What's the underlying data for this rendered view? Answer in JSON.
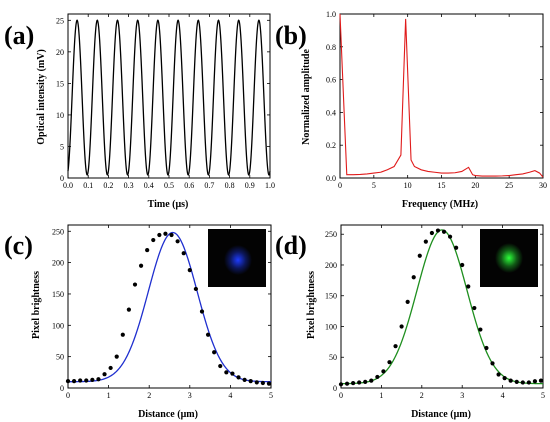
{
  "colors": {
    "panel_a_line": "#000000",
    "panel_b_line": "#e01b1b",
    "panel_c_fit": "#1f2fcf",
    "panel_d_fit": "#1f8f1f",
    "points": "#000000",
    "inset_background": "#030303",
    "inset_c_spot": "#1e3cff",
    "inset_d_spot": "#2cff3a"
  },
  "chart_data": [
    {
      "panel": "(a)",
      "type": "line",
      "xlabel": "Time (μs)",
      "ylabel": "Optical intensity (mV)",
      "xlim": [
        0.0,
        1.0
      ],
      "ylim": [
        0,
        26
      ],
      "xticks": [
        0.0,
        0.1,
        0.2,
        0.3,
        0.4,
        0.5,
        0.6,
        0.7,
        0.8,
        0.9,
        1.0
      ],
      "xtick_labels": [
        "0.0",
        "0.1",
        "0.2",
        "0.3",
        "0.4",
        "0.5",
        "0.6",
        "0.7",
        "0.8",
        "0.9",
        "1.0"
      ],
      "yticks": [
        0,
        5,
        10,
        15,
        20,
        25
      ],
      "ytick_labels": [
        "0",
        "5",
        "10",
        "15",
        "20",
        "25"
      ],
      "series": [
        {
          "function": "sinusoid",
          "frequency_mhz": 10,
          "min": 0.5,
          "max": 25.0,
          "phase_peak_at_us": 0.045
        }
      ]
    },
    {
      "panel": "(b)",
      "type": "line",
      "xlabel": "Frequency (MHz)",
      "ylabel": "Normalized amplitude",
      "xlim": [
        0,
        30
      ],
      "ylim": [
        0.0,
        1.0
      ],
      "xticks": [
        0,
        5,
        10,
        15,
        20,
        25,
        30
      ],
      "xtick_labels": [
        "0",
        "5",
        "10",
        "15",
        "20",
        "25",
        "30"
      ],
      "yticks": [
        0.0,
        0.2,
        0.4,
        0.6,
        0.8,
        1.0
      ],
      "ytick_labels": [
        "0.0",
        "0.2",
        "0.4",
        "0.6",
        "0.8",
        "1.0"
      ],
      "series": [
        {
          "x": [
            0,
            1,
            2,
            3,
            4,
            5,
            6,
            7,
            8,
            9,
            9.7,
            10.5,
            11,
            12,
            13,
            14,
            15,
            16,
            17,
            18,
            19,
            19.6,
            20,
            21,
            22,
            23,
            24,
            25,
            26,
            27,
            28,
            28.8,
            29.5,
            30
          ],
          "y": [
            1.0,
            0.02,
            0.02,
            0.022,
            0.025,
            0.03,
            0.035,
            0.05,
            0.07,
            0.14,
            0.97,
            0.11,
            0.07,
            0.05,
            0.04,
            0.035,
            0.03,
            0.03,
            0.032,
            0.04,
            0.065,
            0.02,
            0.015,
            0.012,
            0.012,
            0.012,
            0.013,
            0.015,
            0.02,
            0.025,
            0.035,
            0.045,
            0.03,
            0.005
          ]
        }
      ]
    },
    {
      "panel": "(c)",
      "type": "scatter",
      "xlabel": "Distance (μm)",
      "ylabel": "Pixel brightness",
      "xlim": [
        0,
        5
      ],
      "ylim": [
        0,
        260
      ],
      "xticks": [
        0,
        1,
        2,
        3,
        4,
        5
      ],
      "xtick_labels": [
        "0",
        "1",
        "2",
        "3",
        "4",
        "5"
      ],
      "yticks": [
        0,
        50,
        100,
        150,
        200,
        250
      ],
      "ytick_labels": [
        "0",
        "50",
        "100",
        "150",
        "200",
        "250"
      ],
      "fit": {
        "function": "gaussian",
        "baseline": 10,
        "amplitude": 238,
        "center": 2.58,
        "sigma": 0.6
      },
      "points": {
        "x": [
          0.0,
          0.15,
          0.3,
          0.45,
          0.6,
          0.75,
          0.9,
          1.05,
          1.2,
          1.35,
          1.5,
          1.65,
          1.8,
          1.95,
          2.1,
          2.25,
          2.4,
          2.55,
          2.7,
          2.85,
          3.0,
          3.15,
          3.3,
          3.45,
          3.6,
          3.75,
          3.9,
          4.05,
          4.2,
          4.35,
          4.5,
          4.65,
          4.8,
          4.95
        ],
        "y": [
          11,
          11,
          12,
          12,
          13,
          14,
          22,
          32,
          50,
          85,
          125,
          165,
          195,
          220,
          236,
          244,
          246,
          244,
          234,
          215,
          188,
          158,
          122,
          85,
          57,
          35,
          25,
          23,
          17,
          13,
          11,
          9,
          8,
          7
        ]
      }
    },
    {
      "panel": "(d)",
      "type": "scatter",
      "xlabel": "Distance (μm)",
      "ylabel": "Pixel brightness",
      "xlim": [
        0,
        5
      ],
      "ylim": [
        0,
        265
      ],
      "xticks": [
        0,
        1,
        2,
        3,
        4,
        5
      ],
      "xtick_labels": [
        "0",
        "1",
        "2",
        "3",
        "4",
        "5"
      ],
      "yticks": [
        0,
        50,
        100,
        150,
        200,
        250
      ],
      "ytick_labels": [
        "0",
        "50",
        "100",
        "150",
        "200",
        "250"
      ],
      "fit": {
        "function": "gaussian",
        "baseline": 7,
        "amplitude": 250,
        "center": 2.5,
        "sigma": 0.62
      },
      "points": {
        "x": [
          0.0,
          0.15,
          0.3,
          0.45,
          0.6,
          0.75,
          0.9,
          1.05,
          1.2,
          1.35,
          1.5,
          1.65,
          1.8,
          1.95,
          2.1,
          2.25,
          2.4,
          2.55,
          2.7,
          2.85,
          3.0,
          3.15,
          3.3,
          3.45,
          3.6,
          3.75,
          3.9,
          4.05,
          4.2,
          4.35,
          4.5,
          4.65,
          4.8,
          4.95
        ],
        "y": [
          6,
          7,
          8,
          9,
          10,
          12,
          18,
          27,
          42,
          68,
          100,
          140,
          180,
          215,
          238,
          252,
          256,
          254,
          246,
          228,
          200,
          165,
          130,
          95,
          65,
          40,
          22,
          16,
          12,
          10,
          9,
          9,
          11,
          12
        ]
      }
    }
  ]
}
